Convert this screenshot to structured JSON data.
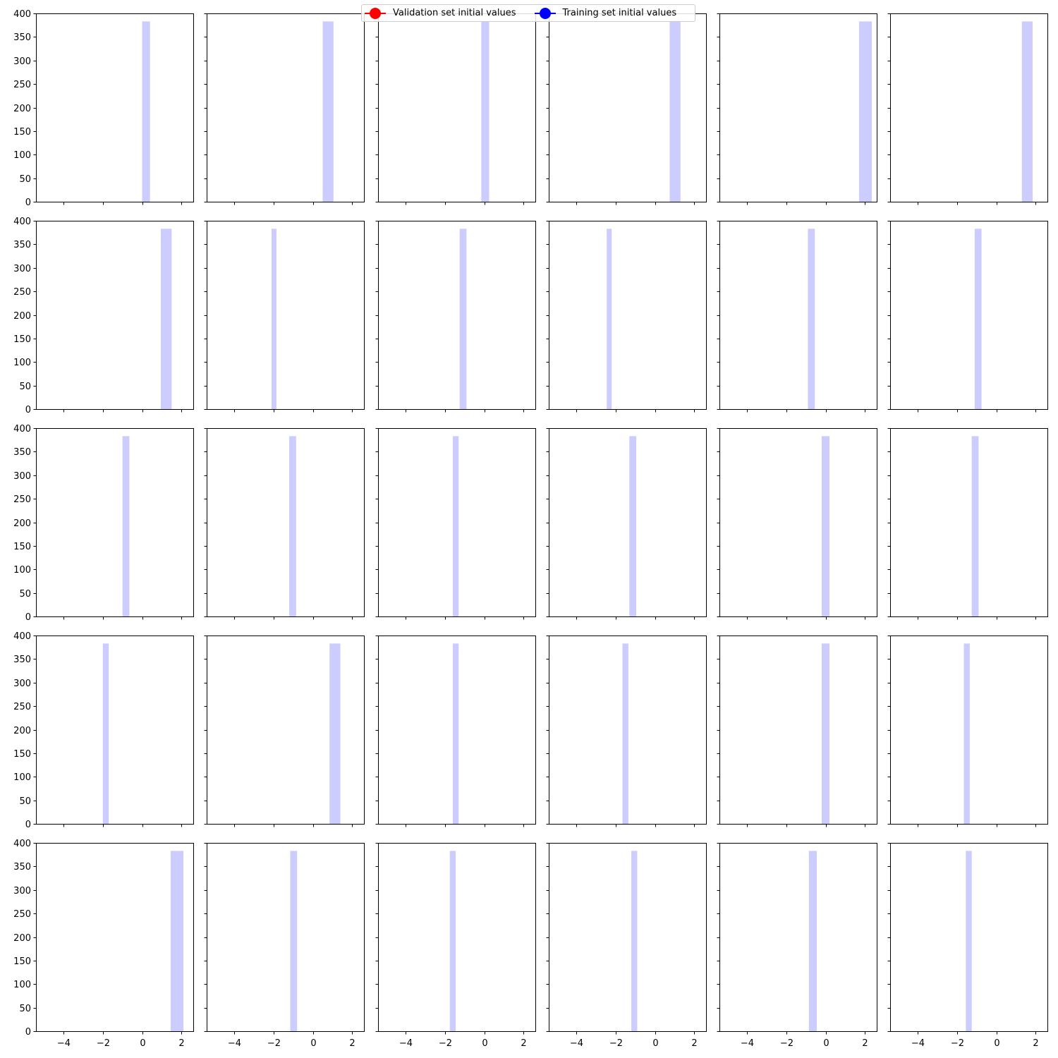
{
  "legend": {
    "entries": [
      {
        "label": "Validation set initial values",
        "color": "#ff0000",
        "marker": "circle"
      },
      {
        "label": "Training set initial values",
        "color": "#0000ff",
        "marker": "circle"
      }
    ]
  },
  "chart_data": {
    "type": "bar",
    "layout": "5x6 histogram grid, shared axes",
    "bar_color": "#ccccff",
    "frequency": 383,
    "xlim": [
      -5.4,
      2.6
    ],
    "ylim": [
      0,
      400
    ],
    "xticks": [
      -4,
      -2,
      0,
      2
    ],
    "yticks": [
      0,
      50,
      100,
      150,
      200,
      250,
      300,
      350,
      400
    ],
    "panels": [
      {
        "row": 1,
        "col": 1,
        "bin": [
          0.0,
          0.4
        ],
        "count": 383
      },
      {
        "row": 1,
        "col": 2,
        "bin": [
          0.5,
          1.05
        ],
        "count": 383
      },
      {
        "row": 1,
        "col": 3,
        "bin": [
          -0.15,
          0.25
        ],
        "count": 383
      },
      {
        "row": 1,
        "col": 4,
        "bin": [
          0.75,
          1.3
        ],
        "count": 383
      },
      {
        "row": 1,
        "col": 5,
        "bin": [
          1.7,
          2.35
        ],
        "count": 383
      },
      {
        "row": 1,
        "col": 6,
        "bin": [
          1.3,
          1.85
        ],
        "count": 383
      },
      {
        "row": 2,
        "col": 1,
        "bin": [
          0.95,
          1.5
        ],
        "count": 383
      },
      {
        "row": 2,
        "col": 2,
        "bin": [
          -2.1,
          -1.85
        ],
        "count": 383
      },
      {
        "row": 2,
        "col": 3,
        "bin": [
          -1.25,
          -0.9
        ],
        "count": 383
      },
      {
        "row": 2,
        "col": 4,
        "bin": [
          -2.45,
          -2.2
        ],
        "count": 383
      },
      {
        "row": 2,
        "col": 5,
        "bin": [
          -0.9,
          -0.55
        ],
        "count": 383
      },
      {
        "row": 2,
        "col": 6,
        "bin": [
          -1.1,
          -0.75
        ],
        "count": 383
      },
      {
        "row": 3,
        "col": 1,
        "bin": [
          -1.0,
          -0.65
        ],
        "count": 383
      },
      {
        "row": 3,
        "col": 2,
        "bin": [
          -1.2,
          -0.85
        ],
        "count": 383
      },
      {
        "row": 3,
        "col": 3,
        "bin": [
          -1.6,
          -1.3
        ],
        "count": 383
      },
      {
        "row": 3,
        "col": 4,
        "bin": [
          -1.3,
          -0.95
        ],
        "count": 383
      },
      {
        "row": 3,
        "col": 5,
        "bin": [
          -0.2,
          0.2
        ],
        "count": 383
      },
      {
        "row": 3,
        "col": 6,
        "bin": [
          -1.25,
          -0.9
        ],
        "count": 383
      },
      {
        "row": 4,
        "col": 1,
        "bin": [
          -2.0,
          -1.7
        ],
        "count": 383
      },
      {
        "row": 4,
        "col": 2,
        "bin": [
          0.85,
          1.4
        ],
        "count": 383
      },
      {
        "row": 4,
        "col": 3,
        "bin": [
          -1.6,
          -1.3
        ],
        "count": 383
      },
      {
        "row": 4,
        "col": 4,
        "bin": [
          -1.65,
          -1.35
        ],
        "count": 383
      },
      {
        "row": 4,
        "col": 5,
        "bin": [
          -0.2,
          0.2
        ],
        "count": 383
      },
      {
        "row": 4,
        "col": 6,
        "bin": [
          -1.65,
          -1.35
        ],
        "count": 383
      },
      {
        "row": 5,
        "col": 1,
        "bin": [
          1.45,
          2.1
        ],
        "count": 383
      },
      {
        "row": 5,
        "col": 2,
        "bin": [
          -1.15,
          -0.8
        ],
        "count": 383
      },
      {
        "row": 5,
        "col": 3,
        "bin": [
          -1.75,
          -1.45
        ],
        "count": 383
      },
      {
        "row": 5,
        "col": 4,
        "bin": [
          -1.2,
          -0.9
        ],
        "count": 383
      },
      {
        "row": 5,
        "col": 5,
        "bin": [
          -0.85,
          -0.45
        ],
        "count": 383
      },
      {
        "row": 5,
        "col": 6,
        "bin": [
          -1.55,
          -1.25
        ],
        "count": 383
      }
    ]
  }
}
